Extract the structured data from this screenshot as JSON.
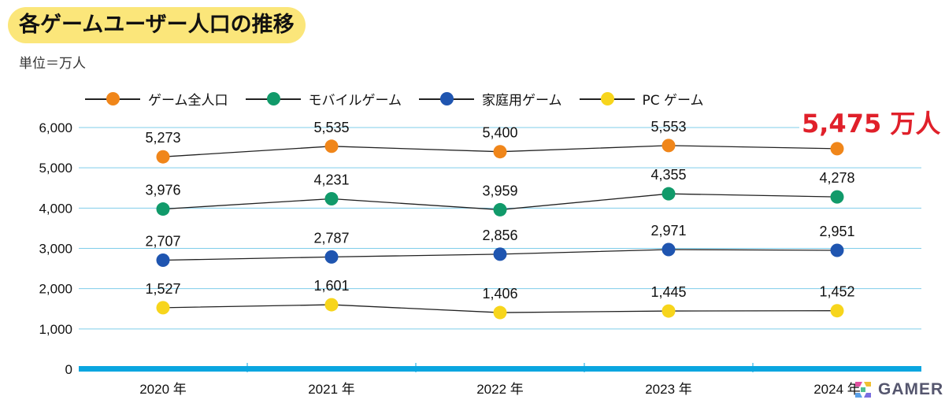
{
  "title": "各ゲームユーザー人口の推移",
  "unit": "単位＝万人",
  "highlight": "5,475 万人",
  "watermark": "GAMER",
  "chart_data": {
    "type": "line",
    "categories": [
      "2020 年",
      "2021 年",
      "2022 年",
      "2023 年",
      "2024 年"
    ],
    "ylim": [
      0,
      6000
    ],
    "yticks": [
      0,
      1000,
      2000,
      3000,
      4000,
      5000,
      6000
    ],
    "ytick_labels": [
      "0",
      "1,000",
      "2,000",
      "3,000",
      "4,000",
      "5,000",
      "6,000"
    ],
    "grid": true,
    "legend": "top",
    "series": [
      {
        "name": "ゲーム全人口",
        "color": "#f0861a",
        "values": [
          5273,
          5535,
          5400,
          5553,
          5475
        ],
        "labels": [
          "5,273",
          "5,535",
          "5,400",
          "5,553",
          ""
        ]
      },
      {
        "name": "モバイルゲーム",
        "color": "#119a6a",
        "values": [
          3976,
          4231,
          3959,
          4355,
          4278
        ],
        "labels": [
          "3,976",
          "4,231",
          "3,959",
          "4,355",
          "4,278"
        ]
      },
      {
        "name": "家庭用ゲーム",
        "color": "#1f55b0",
        "values": [
          2707,
          2787,
          2856,
          2971,
          2951
        ],
        "labels": [
          "2,707",
          "2,787",
          "2,856",
          "2,971",
          "2,951"
        ]
      },
      {
        "name": "PC ゲーム",
        "color": "#f7d51c",
        "values": [
          1527,
          1601,
          1406,
          1445,
          1452
        ],
        "labels": [
          "1,527",
          "1,601",
          "1,406",
          "1,445",
          "1,452"
        ]
      }
    ]
  }
}
